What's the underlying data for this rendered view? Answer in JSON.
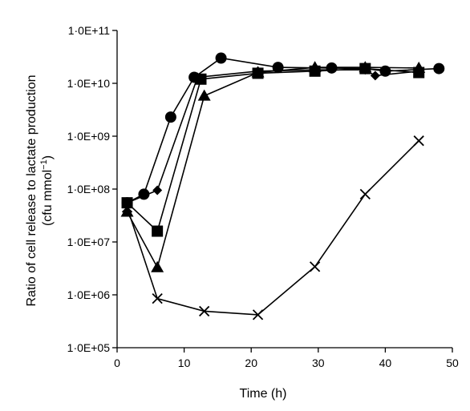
{
  "chart_data": {
    "type": "line",
    "title": "",
    "xlabel": "Time (h)",
    "ylabel_line1": "Ratio of cell release to lactate production",
    "ylabel_line2_prefix": "(cfu mmol",
    "ylabel_line2_sup": "−1",
    "ylabel_line2_suffix": ")",
    "xlim": [
      0,
      50
    ],
    "ylim": [
      100000,
      100000000000
    ],
    "yscale": "log",
    "x_ticks": [
      0,
      10,
      20,
      30,
      40,
      50
    ],
    "x_tick_labels": [
      "0",
      "10",
      "20",
      "30",
      "40",
      "50"
    ],
    "y_ticks": [
      100000,
      1000000,
      10000000,
      100000000,
      1000000000,
      10000000000,
      100000000000
    ],
    "y_tick_labels": [
      "1·0E+05",
      "1·0E+06",
      "1·0E+07",
      "1·0E+08",
      "1·0E+09",
      "1·0E+10",
      "1·0E+11"
    ],
    "grid": false,
    "legend": false,
    "series": [
      {
        "marker": "circle",
        "x": [
          1.5,
          4,
          8,
          11.5,
          15.5,
          24,
          32,
          37,
          40,
          48
        ],
        "y": [
          55000000,
          80000000,
          2300000000,
          13000000000,
          30000000000,
          20000000000,
          19500000000,
          19000000000,
          17000000000,
          19000000000
        ]
      },
      {
        "marker": "diamond",
        "x": [
          1.5,
          6,
          12,
          21,
          29.5,
          37,
          38.5,
          45
        ],
        "y": [
          55000000,
          95000000,
          13000000000,
          17000000000,
          18000000000,
          18000000000,
          14000000000,
          17000000000
        ]
      },
      {
        "marker": "square",
        "x": [
          1.5,
          6,
          12.5,
          21,
          29.5,
          37,
          45
        ],
        "y": [
          55000000,
          16000000,
          12000000000,
          15500000000,
          17000000000,
          19000000000,
          16000000000
        ]
      },
      {
        "marker": "triangle",
        "x": [
          1.5,
          6,
          13,
          21,
          29.5,
          37,
          45
        ],
        "y": [
          37000000,
          3300000,
          5800000000,
          16000000000,
          20000000000,
          20000000000,
          19500000000
        ]
      },
      {
        "marker": "cross",
        "x": [
          1.5,
          6,
          13,
          21,
          29.5,
          37,
          45
        ],
        "y": [
          45000000,
          850000,
          490000,
          420000,
          3400000,
          80000000,
          820000000
        ]
      }
    ]
  }
}
